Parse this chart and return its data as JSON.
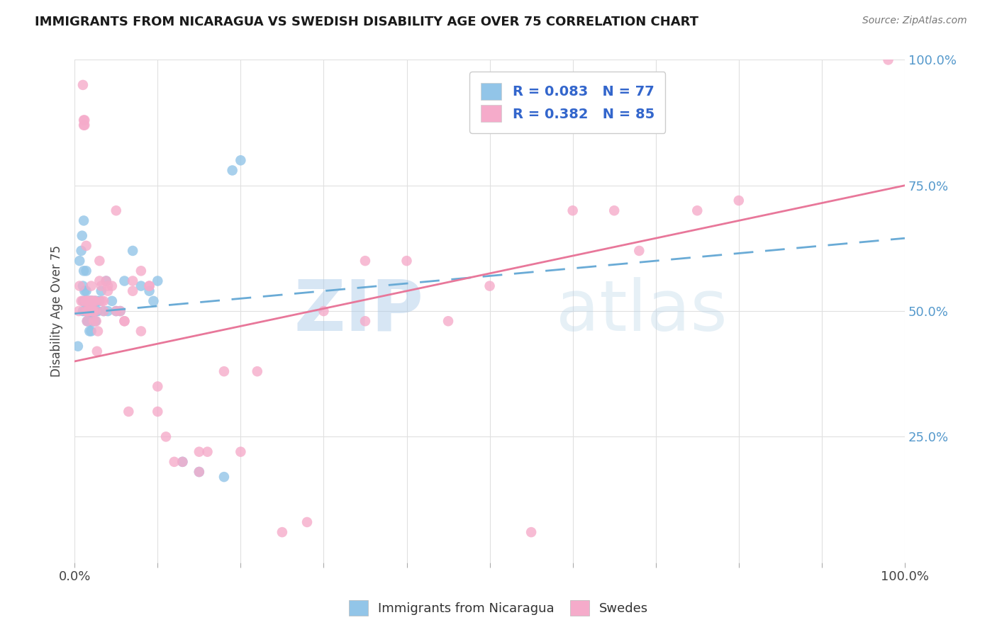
{
  "title": "IMMIGRANTS FROM NICARAGUA VS SWEDISH DISABILITY AGE OVER 75 CORRELATION CHART",
  "source": "Source: ZipAtlas.com",
  "ylabel": "Disability Age Over 75",
  "xlim": [
    0,
    100
  ],
  "ylim": [
    0,
    100
  ],
  "legend_label1": "Immigrants from Nicaragua",
  "legend_label2": "Swedes",
  "blue_color": "#92C5E8",
  "pink_color": "#F5ABCA",
  "blue_line_color": "#6AABD6",
  "pink_line_color": "#E8779A",
  "watermark_zip": "ZIP",
  "watermark_atlas": "atlas",
  "R_blue": 0.083,
  "N_blue": 77,
  "R_pink": 0.382,
  "N_pink": 85,
  "blue_intercept": 49.5,
  "blue_slope": 0.15,
  "pink_intercept": 40.0,
  "pink_slope": 0.35,
  "blue_points_x": [
    0.4,
    0.6,
    0.8,
    0.9,
    1.0,
    1.0,
    1.0,
    1.1,
    1.1,
    1.2,
    1.2,
    1.3,
    1.3,
    1.3,
    1.4,
    1.4,
    1.4,
    1.4,
    1.5,
    1.5,
    1.5,
    1.5,
    1.6,
    1.6,
    1.6,
    1.6,
    1.7,
    1.7,
    1.7,
    1.7,
    1.8,
    1.8,
    1.8,
    1.8,
    1.8,
    1.9,
    1.9,
    1.9,
    1.9,
    2.0,
    2.0,
    2.0,
    2.0,
    2.0,
    2.0,
    2.1,
    2.1,
    2.1,
    2.2,
    2.2,
    2.3,
    2.3,
    2.4,
    2.5,
    2.5,
    2.6,
    2.7,
    2.8,
    3.0,
    3.2,
    3.5,
    3.8,
    4.0,
    4.5,
    5.0,
    5.5,
    6.0,
    7.0,
    8.0,
    9.0,
    9.5,
    10.0,
    13.0,
    15.0,
    18.0,
    19.0,
    20.0
  ],
  "blue_points_y": [
    43,
    60,
    62,
    65,
    55,
    52,
    50,
    58,
    68,
    54,
    52,
    50,
    52,
    50,
    58,
    54,
    52,
    50,
    52,
    50,
    50,
    48,
    52,
    50,
    50,
    48,
    52,
    50,
    50,
    48,
    52,
    50,
    50,
    48,
    46,
    52,
    50,
    50,
    48,
    52,
    52,
    50,
    50,
    48,
    46,
    52,
    50,
    48,
    52,
    48,
    50,
    48,
    52,
    52,
    48,
    50,
    52,
    50,
    52,
    54,
    50,
    56,
    50,
    52,
    50,
    50,
    56,
    62,
    55,
    54,
    52,
    56,
    20,
    18,
    17,
    78,
    80
  ],
  "pink_points_x": [
    0.5,
    0.6,
    0.8,
    1.0,
    1.0,
    1.1,
    1.1,
    1.2,
    1.2,
    1.3,
    1.3,
    1.4,
    1.4,
    1.5,
    1.5,
    1.5,
    1.6,
    1.6,
    1.7,
    1.8,
    1.8,
    1.9,
    2.0,
    2.0,
    2.0,
    2.1,
    2.1,
    2.2,
    2.2,
    2.3,
    2.3,
    2.4,
    2.5,
    2.5,
    2.6,
    2.7,
    2.8,
    3.0,
    3.0,
    3.2,
    3.3,
    3.5,
    3.5,
    3.8,
    4.0,
    4.0,
    4.5,
    5.0,
    5.0,
    5.5,
    6.0,
    6.0,
    6.5,
    7.0,
    7.0,
    8.0,
    8.0,
    9.0,
    9.0,
    10.0,
    10.0,
    11.0,
    12.0,
    13.0,
    15.0,
    15.0,
    16.0,
    18.0,
    20.0,
    22.0,
    25.0,
    28.0,
    30.0,
    35.0,
    35.0,
    40.0,
    45.0,
    50.0,
    55.0,
    60.0,
    65.0,
    68.0,
    75.0,
    80.0,
    98.0
  ],
  "pink_points_y": [
    50,
    55,
    52,
    52,
    95,
    88,
    87,
    88,
    87,
    52,
    50,
    63,
    52,
    50,
    52,
    48,
    52,
    50,
    50,
    52,
    50,
    50,
    55,
    52,
    52,
    52,
    50,
    52,
    50,
    50,
    48,
    52,
    52,
    50,
    48,
    42,
    46,
    60,
    56,
    55,
    52,
    52,
    50,
    56,
    54,
    55,
    55,
    70,
    50,
    50,
    48,
    48,
    30,
    56,
    54,
    58,
    46,
    55,
    55,
    35,
    30,
    25,
    20,
    20,
    22,
    18,
    22,
    38,
    22,
    38,
    6,
    8,
    50,
    48,
    60,
    60,
    48,
    55,
    6,
    70,
    70,
    62,
    70,
    72,
    100
  ]
}
